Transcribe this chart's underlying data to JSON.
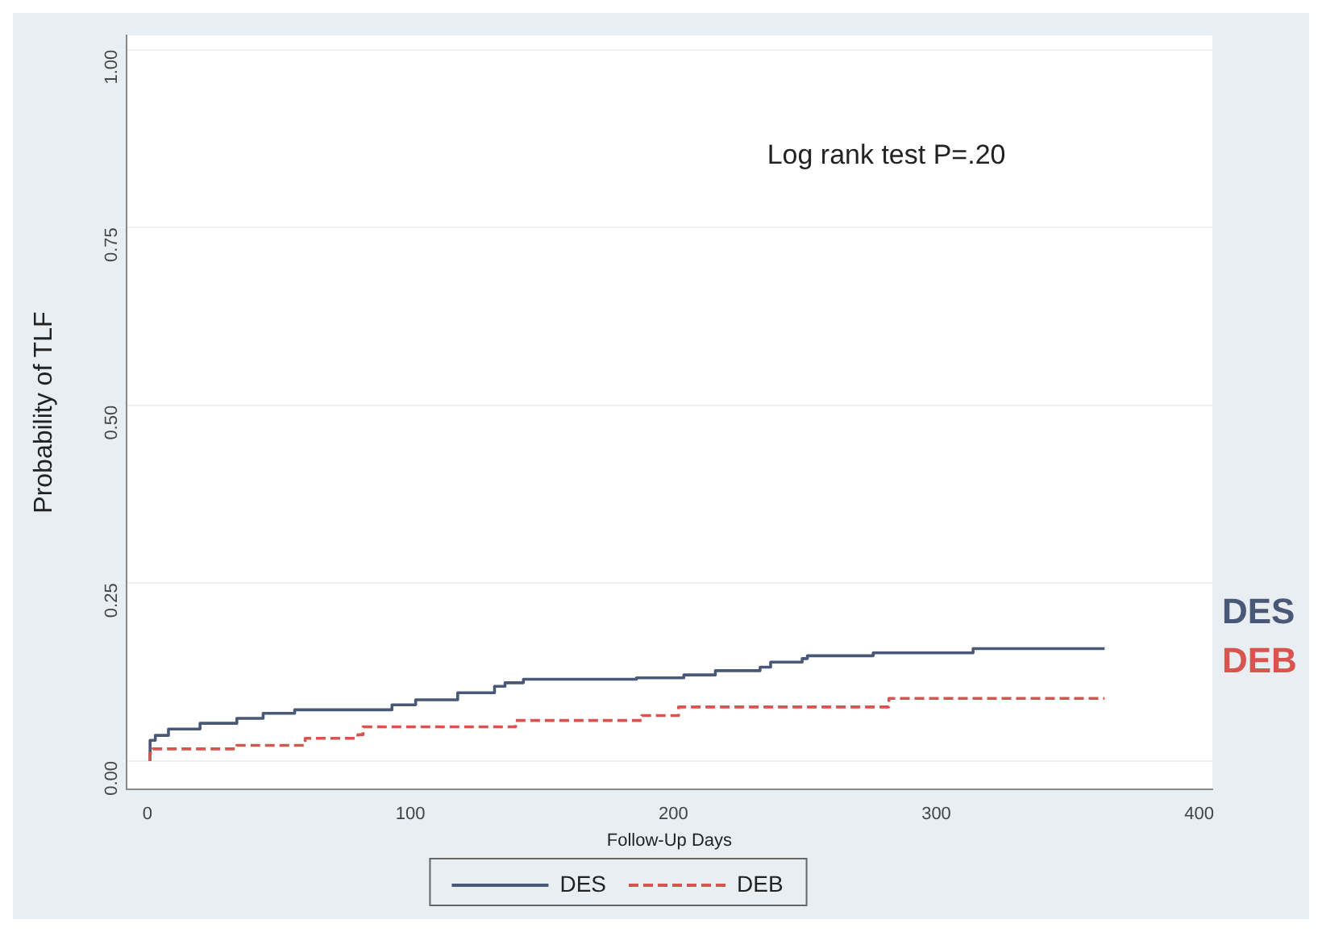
{
  "chart_data": {
    "type": "step",
    "xlabel": "Follow-Up Days",
    "ylabel": "Probability of TLF",
    "xlim": [
      -8,
      405
    ],
    "ylim": [
      -0.04,
      1.02
    ],
    "xticks": [
      0,
      100,
      200,
      300,
      400
    ],
    "yticks": [
      {
        "value": 0,
        "label": "0.00"
      },
      {
        "value": 0.25,
        "label": "0.25"
      },
      {
        "value": 0.5,
        "label": "0.50"
      },
      {
        "value": 0.75,
        "label": "0.75"
      },
      {
        "value": 1,
        "label": "1.00"
      }
    ],
    "grid": "y",
    "legend": "bottom",
    "annotations": [
      "Log rank test P=.20"
    ],
    "series": [
      {
        "name": "DES",
        "color": "#4a5878",
        "line_style": "solid",
        "x": [
          1,
          1,
          3,
          8,
          20,
          34,
          44,
          56,
          93,
          102,
          118,
          132,
          136,
          143,
          186,
          204,
          216,
          233,
          237,
          249,
          251,
          276,
          314,
          355,
          364
        ],
        "values": [
          0,
          0.017,
          0.029,
          0.036,
          0.045,
          0.053,
          0.06,
          0.067,
          0.072,
          0.079,
          0.086,
          0.096,
          0.105,
          0.11,
          0.115,
          0.117,
          0.121,
          0.127,
          0.132,
          0.139,
          0.144,
          0.148,
          0.152,
          0.158,
          0.158
        ]
      },
      {
        "name": "DEB",
        "color": "#d9534f",
        "line_style": "dashed",
        "x": [
          1,
          1,
          2,
          34,
          60,
          80,
          82,
          140,
          188,
          202,
          282,
          308,
          364
        ],
        "values": [
          0,
          0.004,
          0.011,
          0.017,
          0.022,
          0.032,
          0.037,
          0.048,
          0.057,
          0.064,
          0.076,
          0.088,
          0.088
        ]
      }
    ]
  }
}
